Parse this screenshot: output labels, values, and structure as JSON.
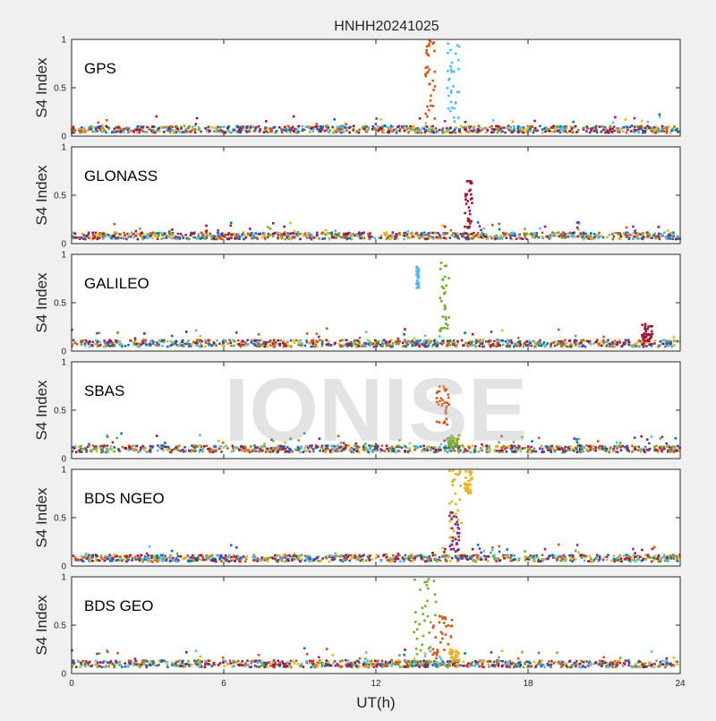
{
  "figure": {
    "title": "HNHH20241025",
    "xlabel": "UT(h)",
    "ylabel": "S4 Index",
    "watermark": "IONISE"
  },
  "chart_data": {
    "type": "scatter",
    "title": "HNHH20241025",
    "xlabel": "UT(h)",
    "xlim": [
      0,
      24
    ],
    "xticks": [
      "0",
      "6",
      "12",
      "18",
      "24"
    ],
    "ylim": [
      0,
      1
    ],
    "yticks": [
      "0",
      "0.5",
      "1"
    ],
    "grid": false,
    "colors": [
      "#0072BD",
      "#D95319",
      "#EDB120",
      "#7E2F8E",
      "#77AC30",
      "#4DBEEE",
      "#A2142F"
    ],
    "panels": [
      {
        "label": "GPS",
        "ylabel": "S4 Index",
        "baseline": 0.07,
        "spikes": [
          {
            "x_range": [
              13.95,
              14.35
            ],
            "y_range": [
              0.15,
              1.0
            ],
            "color": "#D95319"
          },
          {
            "x_range": [
              14.8,
              15.3
            ],
            "y_range": [
              0.15,
              0.98
            ],
            "color": "#4DBEEE"
          }
        ]
      },
      {
        "label": "GLONASS",
        "ylabel": "S4 Index",
        "baseline": 0.08,
        "spikes": [
          {
            "x_range": [
              15.5,
              15.8
            ],
            "y_range": [
              0.15,
              0.65
            ],
            "color": "#A2142F"
          }
        ]
      },
      {
        "label": "GALILEO",
        "ylabel": "S4 Index",
        "baseline": 0.08,
        "spikes": [
          {
            "x_range": [
              14.5,
              14.9
            ],
            "y_range": [
              0.2,
              0.95
            ],
            "color": "#77AC30"
          },
          {
            "x_range": [
              13.6,
              13.7
            ],
            "y_range": [
              0.65,
              0.88
            ],
            "color": "#4DBEEE"
          },
          {
            "x_range": [
              22.5,
              22.9
            ],
            "y_range": [
              0.1,
              0.28
            ],
            "color": "#A2142F"
          }
        ]
      },
      {
        "label": "SBAS",
        "ylabel": "S4 Index",
        "baseline": 0.1,
        "spikes": [
          {
            "x_range": [
              14.4,
              14.9
            ],
            "y_range": [
              0.35,
              0.75
            ],
            "color": "#D95319"
          },
          {
            "x_range": [
              14.8,
              15.3
            ],
            "y_range": [
              0.12,
              0.25
            ],
            "color": "#77AC30"
          }
        ]
      },
      {
        "label": "BDS NGEO",
        "ylabel": "S4 Index",
        "baseline": 0.08,
        "spikes": [
          {
            "x_range": [
              14.9,
              15.4
            ],
            "y_range": [
              0.2,
              1.0
            ],
            "color": "#EDB120"
          },
          {
            "x_range": [
              14.9,
              15.3
            ],
            "y_range": [
              0.15,
              0.6
            ],
            "color": "#7E2F8E"
          },
          {
            "x_range": [
              15.5,
              15.8
            ],
            "y_range": [
              0.75,
              0.98
            ],
            "color": "#EDB120"
          }
        ]
      },
      {
        "label": "BDS GEO",
        "ylabel": "S4 Index",
        "baseline": 0.1,
        "spikes": [
          {
            "x_range": [
              13.5,
              14.4
            ],
            "y_range": [
              0.2,
              0.98
            ],
            "color": "#77AC30"
          },
          {
            "x_range": [
              14.2,
              15.0
            ],
            "y_range": [
              0.15,
              0.6
            ],
            "color": "#D95319"
          },
          {
            "x_range": [
              14.9,
              15.3
            ],
            "y_range": [
              0.12,
              0.25
            ],
            "color": "#EDB120"
          }
        ]
      }
    ]
  }
}
